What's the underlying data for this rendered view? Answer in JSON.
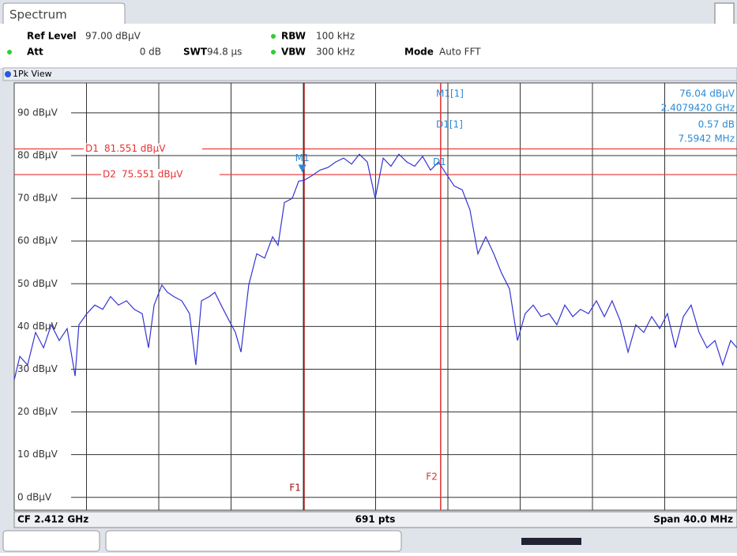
{
  "header": {
    "tab": "Spectrum",
    "ref_level_label": "Ref Level",
    "ref_level": "97.00 dBµV",
    "att_label": "Att",
    "att": "0 dB",
    "swt_label": "SWT",
    "swt": "94.8 µs",
    "rbw_label": "RBW",
    "rbw": "100 kHz",
    "vbw_label": "VBW",
    "vbw": "300 kHz",
    "mode_label": "Mode",
    "mode": "Auto FFT",
    "view": "1Pk View"
  },
  "footer": {
    "center_frequency": "CF 2.412 GHz",
    "points": "691 pts",
    "span": "Span 40.0 MHz"
  },
  "chart_data": {
    "type": "line",
    "color": "#3434d6",
    "grid": true,
    "xlim": [
      2392,
      2432
    ],
    "ylim": [
      -3,
      97
    ],
    "yticks": [
      {
        "value": 0,
        "label": "0 dBµV"
      },
      {
        "value": 10,
        "label": "10 dBµV"
      },
      {
        "value": 20,
        "label": "20 dBµV"
      },
      {
        "value": 30,
        "label": "30 dBµV"
      },
      {
        "value": 40,
        "label": "40 dBµV"
      },
      {
        "value": 50,
        "label": "50 dBµV"
      },
      {
        "value": 60,
        "label": "60 dBµV"
      },
      {
        "value": 70,
        "label": "70 dBµV"
      },
      {
        "value": 80,
        "label": "80 dBµV"
      },
      {
        "value": 90,
        "label": "90 dBµV"
      }
    ],
    "x": [
      2392.0,
      2392.31,
      2392.74,
      2393.18,
      2393.62,
      2394.05,
      2394.49,
      2394.93,
      2395.37,
      2395.58,
      2396.02,
      2396.46,
      2396.9,
      2397.33,
      2397.77,
      2398.21,
      2398.64,
      2399.08,
      2399.43,
      2399.74,
      2400.17,
      2400.48,
      2400.83,
      2401.27,
      2401.7,
      2402.05,
      2402.36,
      2402.8,
      2403.1,
      2403.45,
      2403.89,
      2404.24,
      2404.55,
      2404.98,
      2405.42,
      2405.86,
      2406.3,
      2406.6,
      2406.95,
      2407.39,
      2407.74,
      2408.04,
      2408.48,
      2408.92,
      2409.36,
      2409.79,
      2410.23,
      2410.67,
      2411.1,
      2411.54,
      2411.98,
      2412.42,
      2412.85,
      2413.29,
      2413.73,
      2414.16,
      2414.6,
      2415.04,
      2415.48,
      2415.91,
      2416.35,
      2416.79,
      2417.22,
      2417.66,
      2418.1,
      2418.54,
      2418.97,
      2419.41,
      2419.85,
      2420.28,
      2420.72,
      2421.16,
      2421.6,
      2422.03,
      2422.47,
      2422.91,
      2423.34,
      2423.78,
      2424.22,
      2424.66,
      2425.09,
      2425.53,
      2425.97,
      2426.4,
      2426.84,
      2427.28,
      2427.72,
      2428.15,
      2428.59,
      2429.03,
      2429.46,
      2429.9,
      2430.34,
      2430.78,
      2431.21,
      2431.65,
      2432.0
    ],
    "values": [
      27.5,
      33,
      31,
      38.6,
      35,
      40.4,
      36.7,
      39.5,
      28.4,
      40.4,
      43,
      45,
      44,
      47,
      45,
      46,
      44,
      43,
      35,
      45,
      49.7,
      48,
      47,
      46,
      43,
      31,
      46,
      47,
      48,
      45,
      41.4,
      38.6,
      34,
      49.7,
      57,
      56,
      61,
      59,
      69,
      70,
      74,
      74.2,
      75.3,
      76.6,
      77.2,
      78.5,
      79.4,
      78,
      80.3,
      78.5,
      70,
      79.4,
      77.5,
      80.3,
      78.5,
      77.5,
      79.8,
      76.6,
      78.5,
      75.7,
      72.9,
      72,
      67.3,
      57,
      61,
      57,
      52.5,
      48.8,
      36.7,
      43,
      45,
      42.3,
      43,
      40.4,
      45,
      42.3,
      44,
      43,
      46,
      42.3,
      46,
      41.4,
      34,
      40.4,
      38.6,
      42.3,
      39.5,
      43,
      35,
      42.3,
      45,
      38.6,
      35,
      36.7,
      31,
      36.7,
      35
    ],
    "hlines": [
      {
        "name": "D1",
        "value": 81.551,
        "label": "81.551 dBµV"
      },
      {
        "name": "D2",
        "value": 75.551,
        "label": "75.551 dBµV"
      }
    ],
    "vlines": [
      {
        "name": "F1",
        "x": 2408.04,
        "color": "#a01010"
      },
      {
        "name": "F2",
        "x": 2415.6,
        "color": "#e03030"
      }
    ],
    "marker": {
      "name": "M1",
      "title": "M1[1]",
      "x": {
        "value": 2407.942,
        "label": "2.4079420 GHz"
      },
      "y": {
        "value": 76.04,
        "label": "76.04 dBµV"
      }
    },
    "delta": {
      "name": "D1",
      "title": "D1[1]",
      "dx": {
        "value": 7.5942,
        "label": "7.5942 MHz"
      },
      "dy": {
        "value": 0.57,
        "label": "0.57 dB"
      }
    }
  }
}
